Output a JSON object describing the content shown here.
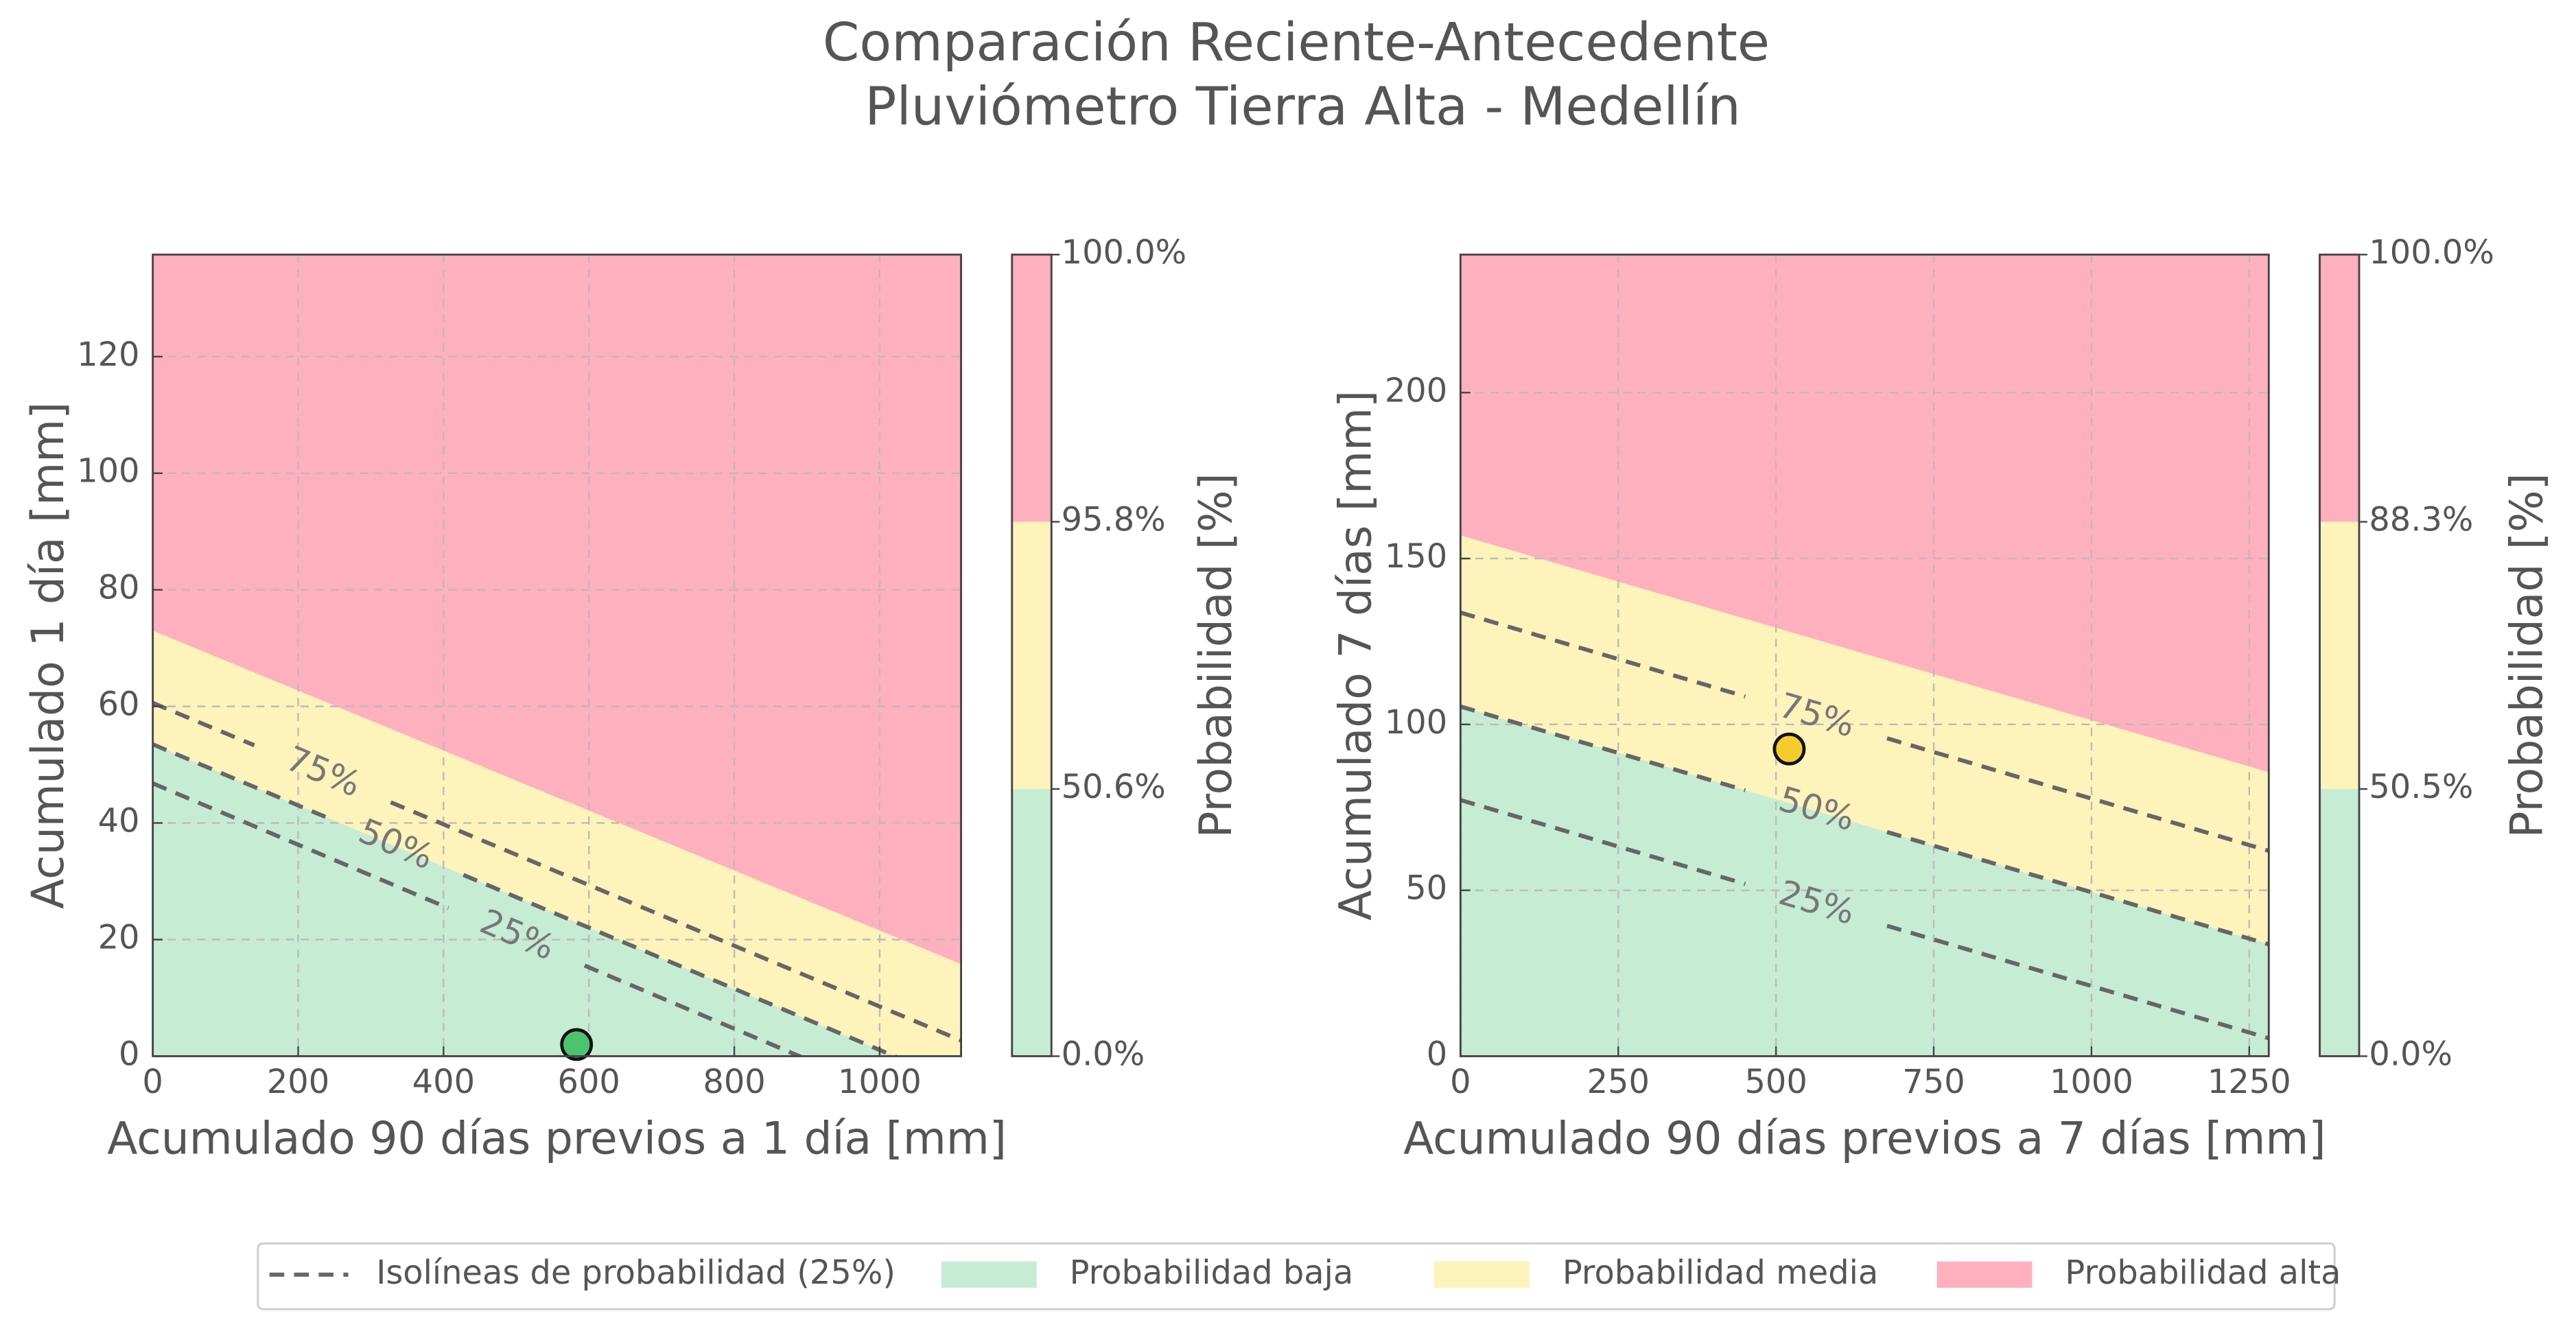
{
  "figure": {
    "title": [
      "Comparación Reciente-Antecedente",
      "Pluviómetro Tierra Alta - Medellín"
    ]
  },
  "legend": {
    "entries": [
      "Isolíneas de probabilidad (25%)",
      "Probabilidad baja",
      "Probabilidad media",
      "Probabilidad alta"
    ],
    "colors": [
      "#666666",
      "#c6ecd4",
      "#fdf3bb",
      "#ffb0be"
    ]
  },
  "chart_data": [
    {
      "type": "contour",
      "xlabel": "Acumulado 90 días previos a 1 día [mm]",
      "ylabel": "Acumulado 1 día [mm]",
      "xlim": [
        0,
        1112
      ],
      "ylim": [
        0,
        137.5
      ],
      "xticks": [
        0,
        200,
        400,
        600,
        800,
        1000
      ],
      "yticks": [
        0,
        20,
        40,
        60,
        80,
        100,
        120
      ],
      "grid": true,
      "boundaries": [
        [
          53.5,
          -4.8
        ],
        [
          73,
          15.8
        ]
      ],
      "isolines": {
        "levels": [
          25,
          50,
          75
        ],
        "value_labels": [
          "25%",
          "50%",
          "75%"
        ],
        "y_at_xlim": [
          [
            46.8,
            -11.7
          ],
          [
            53.5,
            -4.8
          ],
          [
            60.6,
            2.7
          ]
        ]
      },
      "point": {
        "x": 583,
        "y": 2,
        "color": "#4cc46f"
      },
      "colorbar": {
        "label": "Probabilidad [%]",
        "ticks": [
          {
            "value": 0,
            "label": "0.0%"
          },
          {
            "value": 50.6,
            "label": "50.6%"
          },
          {
            "value": 95.8,
            "label": "95.8%"
          },
          {
            "value": 100,
            "label": "100.0%"
          }
        ]
      }
    },
    {
      "type": "contour",
      "xlabel": "Acumulado 90 días previos a 7 días [mm]",
      "ylabel": "Acumulado 7 días [mm]",
      "xlim": [
        0,
        1281
      ],
      "ylim": [
        0,
        241.6
      ],
      "xticks": [
        0,
        250,
        500,
        750,
        1000,
        1250
      ],
      "yticks": [
        0,
        50,
        100,
        150,
        200
      ],
      "grid": true,
      "boundaries": [
        [
          105.4,
          33.7
        ],
        [
          157,
          85.6
        ]
      ],
      "isolines": {
        "levels": [
          25,
          50,
          75
        ],
        "value_labels": [
          "25%",
          "50%",
          "75%"
        ],
        "y_at_xlim": [
          [
            77.2,
            5.4
          ],
          [
            105.4,
            33.7
          ],
          [
            133.7,
            61.9
          ]
        ]
      },
      "point": {
        "x": 521,
        "y": 92.6,
        "color": "#f5cc2f"
      },
      "colorbar": {
        "label": "Probabilidad [%]",
        "ticks": [
          {
            "value": 0,
            "label": "0.0%"
          },
          {
            "value": 50.5,
            "label": "50.5%"
          },
          {
            "value": 88.3,
            "label": "88.3%"
          },
          {
            "value": 100,
            "label": "100.0%"
          }
        ]
      }
    }
  ]
}
